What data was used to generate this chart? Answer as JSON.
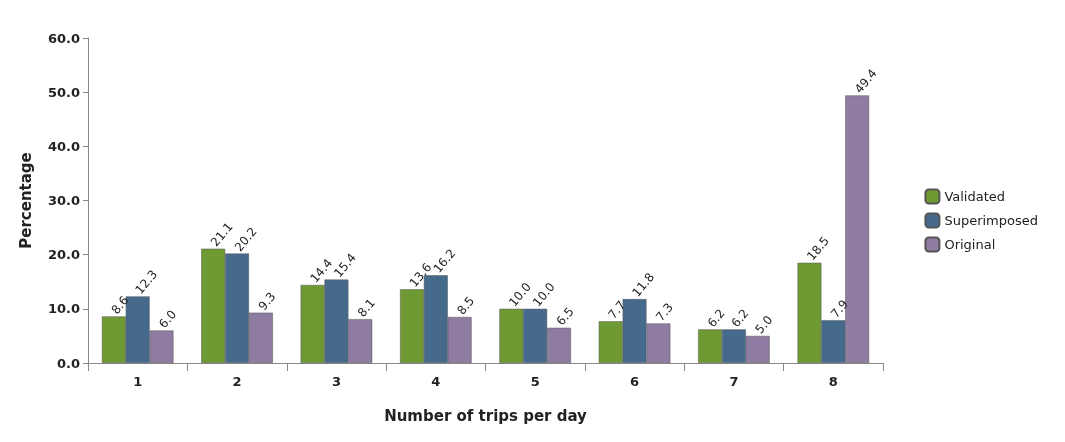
{
  "chart_data": {
    "type": "bar",
    "xlabel": "Number of trips per day",
    "ylabel": "Percentage",
    "categories": [
      "1",
      "2",
      "3",
      "4",
      "5",
      "6",
      "7",
      "8"
    ],
    "series": [
      {
        "name": "Validated",
        "color": "#6f9a33",
        "values": [
          8.6,
          21.1,
          14.4,
          13.6,
          10.0,
          7.7,
          6.2,
          18.5
        ],
        "value_labels": [
          "8.6",
          "21.1",
          "14.4",
          "13.6",
          "10.0",
          "7.7",
          "6.2",
          "18.5"
        ]
      },
      {
        "name": "Superimposed",
        "color": "#456a8c",
        "values": [
          12.3,
          20.2,
          15.4,
          16.2,
          10.0,
          11.8,
          6.2,
          7.9
        ],
        "value_labels": [
          "12.3",
          "20.2",
          "15.4",
          "16.2",
          "10.0",
          "11.8",
          "6.2",
          "7.9"
        ]
      },
      {
        "name": "Original",
        "color": "#8f7ca3",
        "values": [
          6.0,
          9.3,
          8.1,
          8.5,
          6.5,
          7.3,
          5.0,
          49.4
        ],
        "value_labels": [
          "6.0",
          "9.3",
          "8.1",
          "8.5",
          "6.5",
          "7.3",
          "5.0",
          "49.4"
        ]
      }
    ],
    "ylim": [
      0,
      60
    ],
    "yticks": [
      {
        "value": 0,
        "label": "0.0"
      },
      {
        "value": 10,
        "label": "10.0"
      },
      {
        "value": 20,
        "label": "20.0"
      },
      {
        "value": 30,
        "label": "30.0"
      },
      {
        "value": 40,
        "label": "40.0"
      },
      {
        "value": 50,
        "label": "50.0"
      },
      {
        "value": 60,
        "label": "60.0"
      }
    ],
    "grid": false,
    "legend": "right"
  }
}
